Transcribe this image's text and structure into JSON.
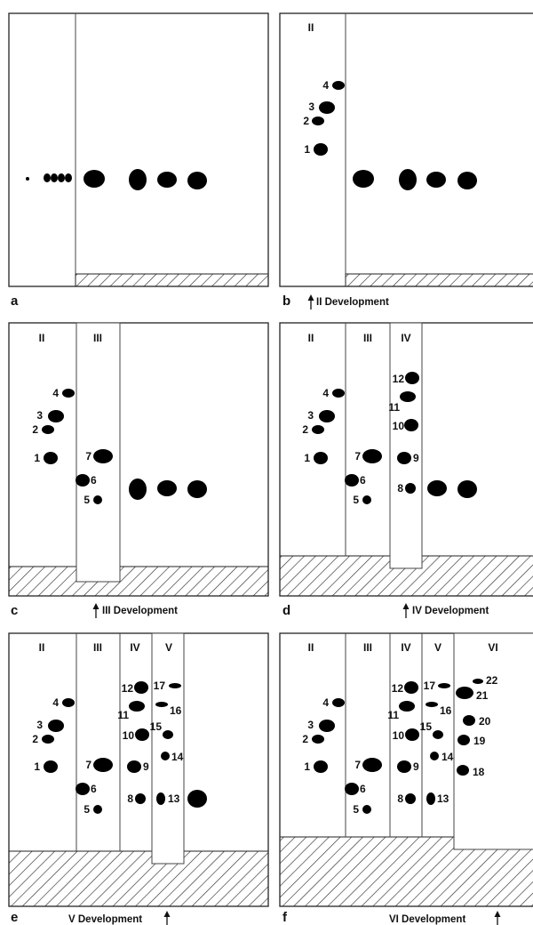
{
  "panels": {
    "a": {
      "letter": "a",
      "caption": ""
    },
    "b": {
      "letter": "b",
      "caption": "II Development",
      "roman": [
        "II"
      ]
    },
    "c": {
      "letter": "c",
      "caption": "III Development",
      "roman": [
        "II",
        "III"
      ]
    },
    "d": {
      "letter": "d",
      "caption": "IV Development",
      "roman": [
        "II",
        "III",
        "IV"
      ]
    },
    "e": {
      "letter": "e",
      "caption": "V Development",
      "roman": [
        "II",
        "III",
        "IV",
        "V"
      ]
    },
    "f": {
      "letter": "f",
      "caption": "VI Development",
      "roman": [
        "II",
        "III",
        "IV",
        "V",
        "VI"
      ]
    }
  },
  "spot_labels": [
    "1",
    "2",
    "3",
    "4",
    "5",
    "6",
    "7",
    "8",
    "9",
    "10",
    "11",
    "12",
    "13",
    "14",
    "15",
    "16",
    "17",
    "18",
    "19",
    "20",
    "21",
    "22"
  ]
}
